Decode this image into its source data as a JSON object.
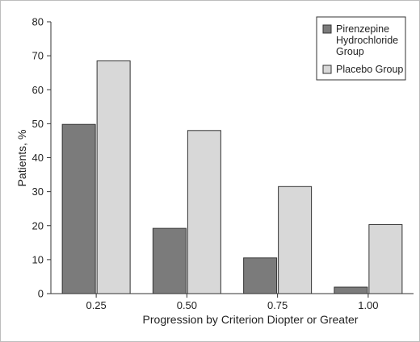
{
  "chart_data": {
    "type": "bar",
    "title": "",
    "xlabel": "Progression by Criterion Diopter or Greater",
    "ylabel": "Patients, %",
    "categories": [
      "0.25",
      "0.50",
      "0.75",
      "1.00"
    ],
    "ylim": [
      0,
      80
    ],
    "yticks": [
      0,
      10,
      20,
      30,
      40,
      50,
      60,
      70,
      80
    ],
    "grid": false,
    "legend_position": "top-right",
    "series": [
      {
        "name": "Pirenzepine Hydrochloride Group",
        "legend_lines": [
          "Pirenzepine",
          "Hydrochloride",
          "Group"
        ],
        "color": "#7b7b7b",
        "values": [
          49.8,
          19.2,
          10.5,
          1.9
        ]
      },
      {
        "name": "Placebo Group",
        "legend_lines": [
          "Placebo Group"
        ],
        "color": "#d8d8d8",
        "values": [
          68.5,
          48.0,
          31.5,
          20.3
        ]
      }
    ]
  }
}
